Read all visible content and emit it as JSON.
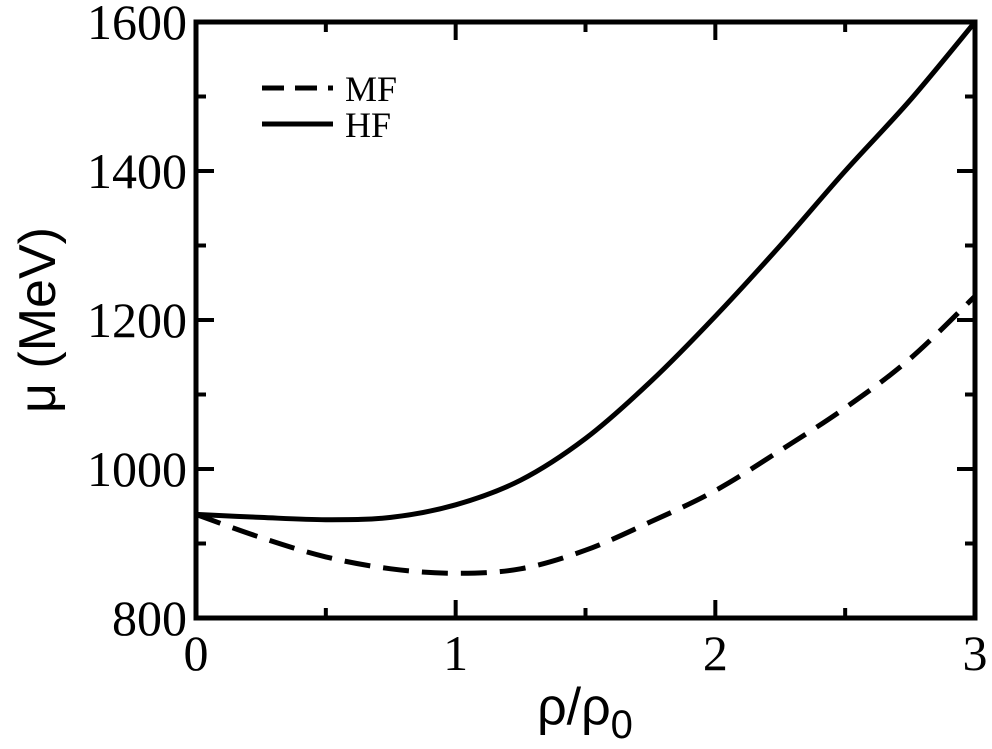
{
  "chart_data": {
    "type": "line",
    "title": "",
    "xlabel_main": "ρ/ρ",
    "xlabel_sub": "0",
    "ylabel": "μ (MeV)",
    "xlim": [
      0,
      3
    ],
    "ylim": [
      800,
      1600
    ],
    "x_ticks": [
      "0",
      "1",
      "2",
      "3"
    ],
    "y_ticks": [
      "800",
      "1000",
      "1200",
      "1400",
      "1600"
    ],
    "legend_position": "top-left",
    "grid": false,
    "series": [
      {
        "name": "MF",
        "style": "dashed",
        "x": [
          0,
          0.25,
          0.5,
          0.75,
          1.0,
          1.25,
          1.5,
          1.75,
          2.0,
          2.25,
          2.5,
          2.75,
          3.0
        ],
        "y": [
          939,
          908,
          882,
          866,
          860,
          866,
          891,
          929,
          971,
          1025,
          1082,
          1148,
          1232
        ]
      },
      {
        "name": "HF",
        "style": "solid",
        "x": [
          0,
          0.25,
          0.5,
          0.75,
          1.0,
          1.25,
          1.5,
          1.75,
          2.0,
          2.25,
          2.5,
          2.75,
          3.0
        ],
        "y": [
          939,
          935,
          932,
          935,
          952,
          985,
          1041,
          1117,
          1205,
          1300,
          1400,
          1495,
          1600
        ]
      }
    ]
  }
}
